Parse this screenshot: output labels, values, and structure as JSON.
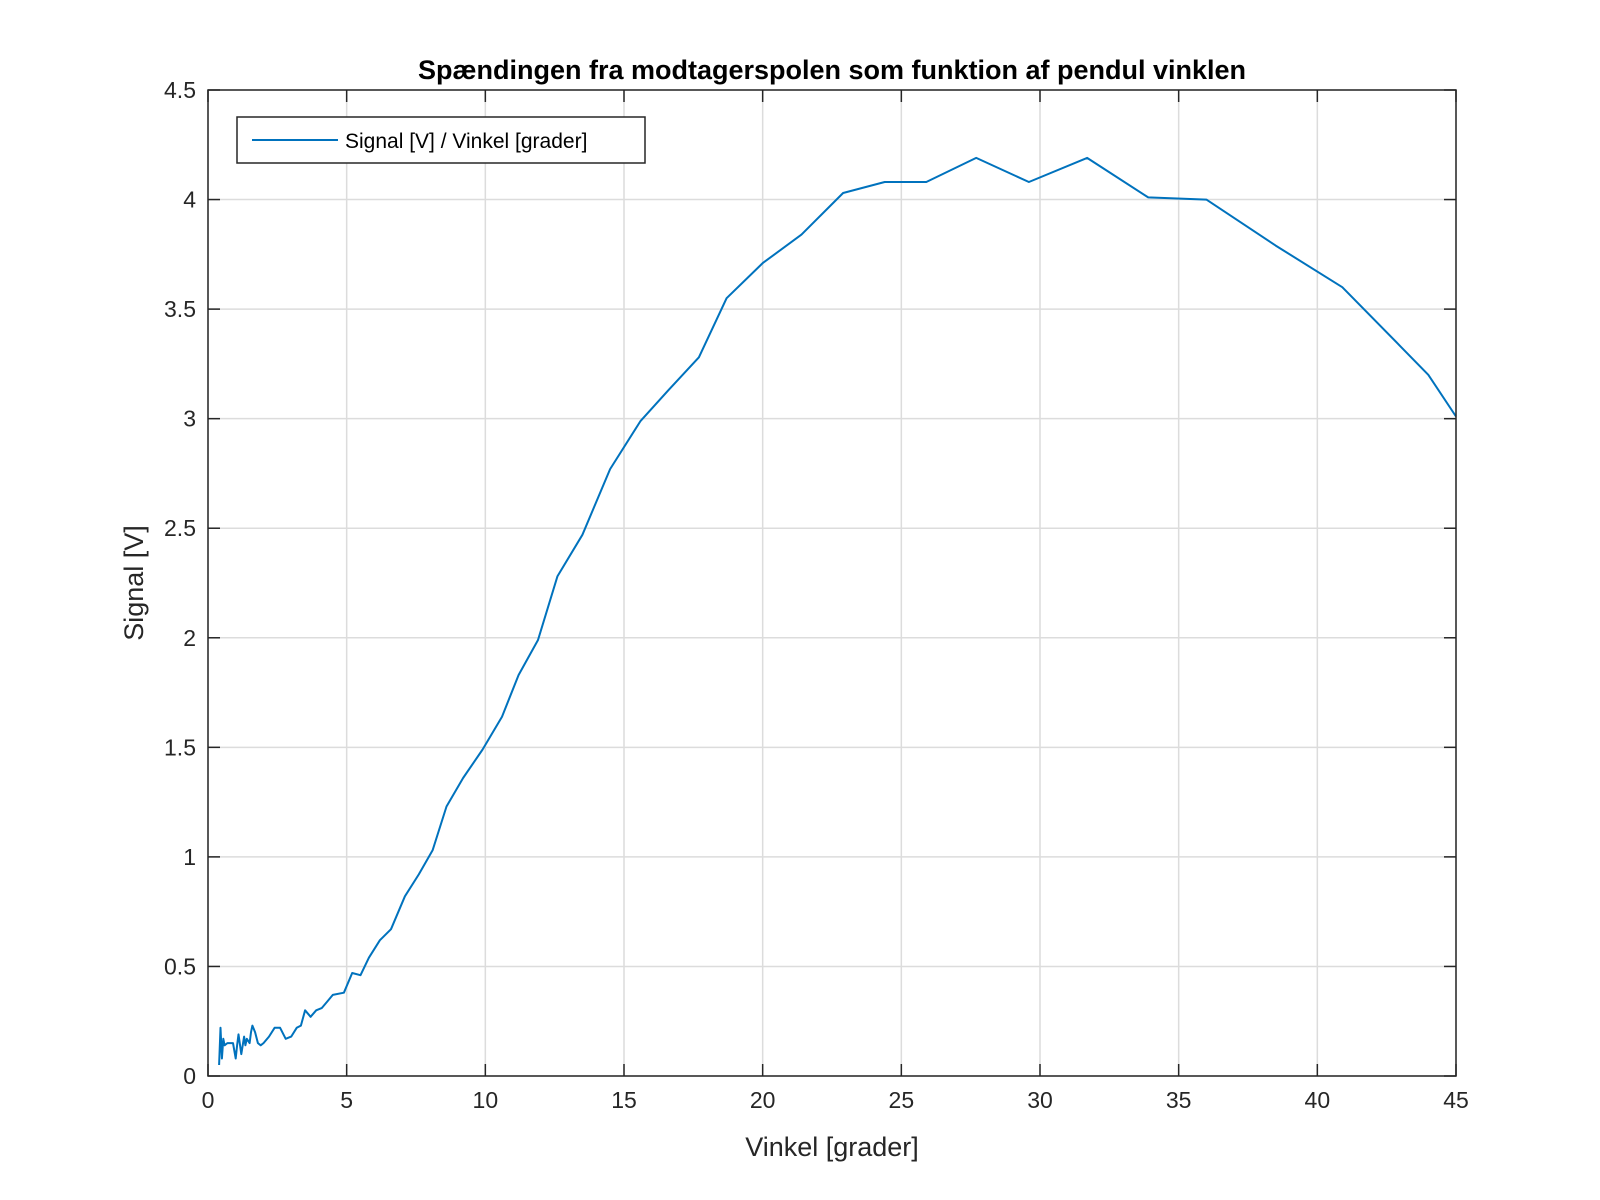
{
  "chart_data": {
    "type": "line",
    "title": "Spændingen fra modtagerspolen som funktion af pendul vinklen",
    "xlabel": "Vinkel [grader]",
    "ylabel": "Signal [V]",
    "xlim": [
      0,
      45
    ],
    "ylim": [
      0,
      4.5
    ],
    "xticks": [
      0,
      5,
      10,
      15,
      20,
      25,
      30,
      35,
      40,
      45
    ],
    "yticks": [
      0,
      0.5,
      1,
      1.5,
      2,
      2.5,
      3,
      3.5,
      4,
      4.5
    ],
    "xtick_labels": [
      "0",
      "5",
      "10",
      "15",
      "20",
      "25",
      "30",
      "35",
      "40",
      "45"
    ],
    "ytick_labels": [
      "0",
      "0.5",
      "1",
      "1.5",
      "2",
      "2.5",
      "3",
      "3.5",
      "4",
      "4.5"
    ],
    "grid": true,
    "legend": {
      "position": "top-left",
      "entries": [
        "Signal [V] / Vinkel [grader]"
      ]
    },
    "series": [
      {
        "name": "Signal [V] / Vinkel [grader]",
        "color": "#0072BD",
        "x": [
          0.4,
          0.45,
          0.5,
          0.55,
          0.6,
          0.7,
          0.8,
          0.9,
          1.0,
          1.05,
          1.1,
          1.2,
          1.3,
          1.35,
          1.4,
          1.5,
          1.55,
          1.6,
          1.7,
          1.8,
          1.9,
          2.0,
          2.2,
          2.4,
          2.6,
          2.8,
          3.0,
          3.2,
          3.35,
          3.5,
          3.7,
          3.9,
          4.1,
          4.3,
          4.5,
          4.9,
          5.2,
          5.5,
          5.8,
          6.2,
          6.6,
          7.1,
          7.6,
          8.1,
          8.6,
          9.2,
          9.9,
          10.6,
          11.2,
          11.9,
          12.6,
          13.5,
          14.5,
          15.6,
          16.6,
          17.7,
          18.7,
          20.0,
          21.4,
          22.9,
          24.4,
          25.9,
          27.7,
          29.6,
          31.7,
          33.9,
          36.0,
          38.5,
          40.9,
          43.0,
          44.0,
          45.0
        ],
        "y": [
          0.05,
          0.22,
          0.08,
          0.17,
          0.14,
          0.15,
          0.15,
          0.15,
          0.08,
          0.14,
          0.19,
          0.1,
          0.18,
          0.14,
          0.17,
          0.15,
          0.2,
          0.23,
          0.2,
          0.15,
          0.14,
          0.15,
          0.18,
          0.22,
          0.22,
          0.17,
          0.18,
          0.22,
          0.23,
          0.3,
          0.27,
          0.3,
          0.31,
          0.34,
          0.37,
          0.38,
          0.47,
          0.46,
          0.54,
          0.62,
          0.67,
          0.82,
          0.92,
          1.03,
          1.23,
          1.36,
          1.49,
          1.64,
          1.83,
          1.99,
          2.28,
          2.47,
          2.77,
          2.99,
          3.13,
          3.28,
          3.55,
          3.71,
          3.84,
          4.03,
          4.08,
          4.08,
          4.19,
          4.08,
          4.19,
          4.01,
          4.0,
          3.79,
          3.6,
          3.33,
          3.2,
          3.01
        ]
      }
    ]
  }
}
